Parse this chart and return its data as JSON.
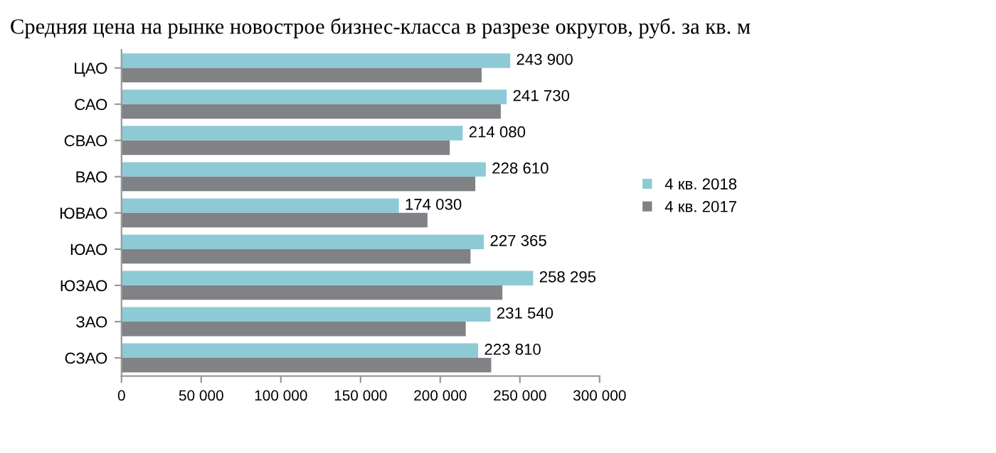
{
  "chart_data": {
    "type": "bar",
    "orientation": "horizontal",
    "title": "Средняя цена на рынке новострое бизнес-класса в разрезе округов, руб. за кв. м",
    "categories": [
      "ЦАО",
      "САО",
      "СВАО",
      "ВАО",
      "ЮВАО",
      "ЮАО",
      "ЮЗАО",
      "ЗАО",
      "СЗАО"
    ],
    "series": [
      {
        "name": "4 кв. 2018",
        "color": "#8ecad6",
        "values": [
          243900,
          241730,
          214080,
          228610,
          174030,
          227365,
          258295,
          231540,
          223810
        ],
        "value_labels": [
          "243 900",
          "241 730",
          "214 080",
          "228 610",
          "174 030",
          "227 365",
          "258 295",
          "231 540",
          "223 810"
        ]
      },
      {
        "name": "4 кв. 2017",
        "color": "#808285",
        "values": [
          226000,
          238000,
          206000,
          222000,
          192000,
          219000,
          239000,
          216000,
          232000
        ]
      }
    ],
    "xlim": [
      0,
      300000
    ],
    "xticks": [
      {
        "value": 0,
        "label": "0"
      },
      {
        "value": 50000,
        "label": "50 000"
      },
      {
        "value": 100000,
        "label": "100 000"
      },
      {
        "value": 150000,
        "label": "150 000"
      },
      {
        "value": 200000,
        "label": "200 000"
      },
      {
        "value": 250000,
        "label": "250 000"
      },
      {
        "value": 300000,
        "label": "300 000"
      }
    ],
    "grid": false,
    "legend": "right"
  }
}
